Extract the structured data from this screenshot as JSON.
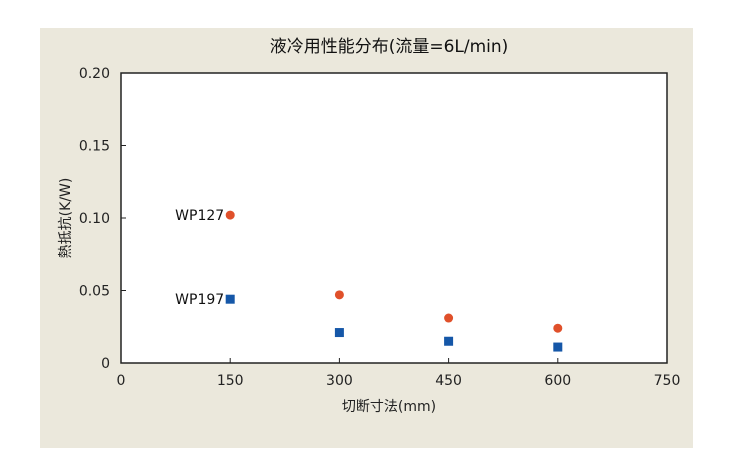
{
  "chart_data": {
    "type": "scatter",
    "title": "液冷用性能分布(流量=6L/min)",
    "xlabel": "切断寸法(mm)",
    "ylabel": "熱抵抗(K/W)",
    "xlim": [
      0,
      750
    ],
    "ylim": [
      0,
      0.2
    ],
    "x_ticks": [
      "0",
      "150",
      "300",
      "450",
      "600",
      "750"
    ],
    "y_ticks": [
      "0",
      "0.05",
      "0.10",
      "0.15",
      "0.20"
    ],
    "grid": false,
    "legend": "none",
    "series": [
      {
        "name": "WP127",
        "marker": "circle",
        "color": "#e0502a",
        "points": [
          {
            "x": 150,
            "y": 0.102
          },
          {
            "x": 300,
            "y": 0.047
          },
          {
            "x": 450,
            "y": 0.031
          },
          {
            "x": 600,
            "y": 0.024
          }
        ]
      },
      {
        "name": "WP197",
        "marker": "square",
        "color": "#1557a8",
        "points": [
          {
            "x": 150,
            "y": 0.044
          },
          {
            "x": 300,
            "y": 0.021
          },
          {
            "x": 450,
            "y": 0.015
          },
          {
            "x": 600,
            "y": 0.011
          }
        ]
      }
    ]
  }
}
